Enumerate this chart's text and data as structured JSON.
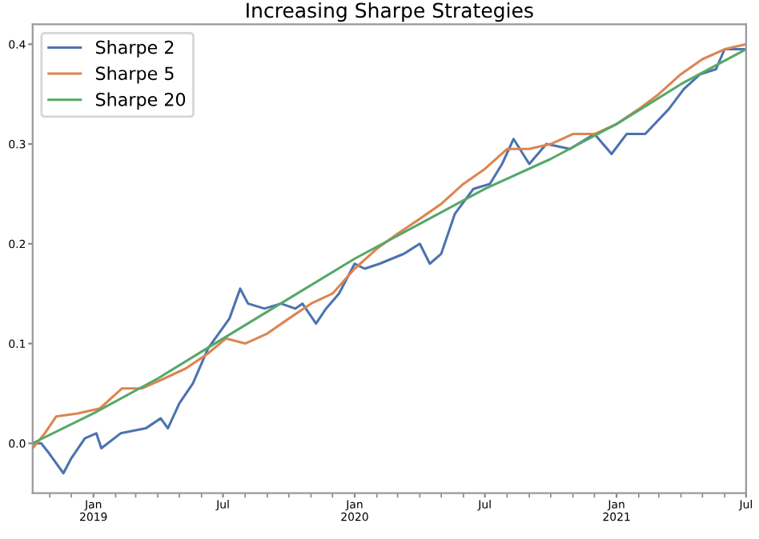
{
  "chart_data": {
    "type": "line",
    "title": "Increasing Sharpe Strategies",
    "xlim": [
      "2018-10-08",
      "2021-07-01"
    ],
    "ylim": [
      -0.05,
      0.42
    ],
    "xticks": [
      {
        "value": "2019-01-01",
        "label": "Jan\n2019"
      },
      {
        "value": "2019-07-01",
        "label": "Jul"
      },
      {
        "value": "2020-01-01",
        "label": "Jan\n2020"
      },
      {
        "value": "2020-07-01",
        "label": "Jul"
      },
      {
        "value": "2021-01-01",
        "label": "Jan\n2021"
      },
      {
        "value": "2021-07-01",
        "label": "Jul"
      }
    ],
    "yticks": [
      {
        "value": 0,
        "label": "0.0"
      },
      0.1,
      0.2,
      0.3,
      0.4
    ],
    "grid": false,
    "legend": "top left",
    "series": [
      {
        "name": "Sharpe 2",
        "color": "#4c72b0",
        "x": [
          "2018-10-08",
          "2018-10-20",
          "2018-10-31",
          "2018-11-20",
          "2018-12-01",
          "2018-12-20",
          "2019-01-05",
          "2019-01-12",
          "2019-02-08",
          "2019-03-15",
          "2019-04-05",
          "2019-04-15",
          "2019-05-01",
          "2019-05-20",
          "2019-06-10",
          "2019-06-25",
          "2019-07-10",
          "2019-07-25",
          "2019-08-05",
          "2019-08-28",
          "2019-09-20",
          "2019-10-10",
          "2019-10-20",
          "2019-11-08",
          "2019-11-22",
          "2019-12-10",
          "2020-01-01",
          "2020-01-15",
          "2020-02-05",
          "2020-03-10",
          "2020-04-01",
          "2020-04-15",
          "2020-05-01",
          "2020-05-20",
          "2020-06-15",
          "2020-07-08",
          "2020-07-25",
          "2020-08-10",
          "2020-09-01",
          "2020-09-25",
          "2020-10-28",
          "2020-12-01",
          "2020-12-25",
          "2021-01-15",
          "2021-02-10",
          "2021-03-15",
          "2021-04-05",
          "2021-04-28",
          "2021-05-20",
          "2021-06-01",
          "2021-06-20",
          "2021-07-01"
        ],
        "values": [
          0.0,
          0.0,
          -0.01,
          -0.03,
          -0.015,
          0.005,
          0.01,
          -0.005,
          0.01,
          0.015,
          0.025,
          0.015,
          0.04,
          0.06,
          0.095,
          0.11,
          0.125,
          0.155,
          0.14,
          0.135,
          0.14,
          0.135,
          0.14,
          0.12,
          0.135,
          0.15,
          0.18,
          0.175,
          0.18,
          0.19,
          0.2,
          0.18,
          0.19,
          0.23,
          0.255,
          0.26,
          0.28,
          0.305,
          0.28,
          0.3,
          0.295,
          0.31,
          0.29,
          0.31,
          0.31,
          0.335,
          0.355,
          0.37,
          0.375,
          0.395,
          0.395,
          0.395
        ]
      },
      {
        "name": "Sharpe 5",
        "color": "#dd8452",
        "x": [
          "2018-10-08",
          "2018-10-25",
          "2018-11-10",
          "2018-12-10",
          "2019-01-10",
          "2019-02-10",
          "2019-03-10",
          "2019-04-10",
          "2019-05-10",
          "2019-06-10",
          "2019-07-05",
          "2019-08-01",
          "2019-09-01",
          "2019-10-01",
          "2019-11-01",
          "2019-12-01",
          "2020-01-01",
          "2020-02-01",
          "2020-03-01",
          "2020-04-01",
          "2020-05-01",
          "2020-06-01",
          "2020-07-01",
          "2020-08-01",
          "2020-09-01",
          "2020-10-01",
          "2020-11-01",
          "2020-12-01",
          "2021-01-01",
          "2021-02-01",
          "2021-03-01",
          "2021-04-01",
          "2021-05-01",
          "2021-06-01",
          "2021-07-01"
        ],
        "values": [
          -0.005,
          0.01,
          0.027,
          0.03,
          0.035,
          0.055,
          0.055,
          0.065,
          0.075,
          0.09,
          0.105,
          0.1,
          0.11,
          0.125,
          0.14,
          0.15,
          0.175,
          0.195,
          0.21,
          0.225,
          0.24,
          0.26,
          0.275,
          0.295,
          0.295,
          0.3,
          0.31,
          0.31,
          0.32,
          0.335,
          0.35,
          0.37,
          0.385,
          0.395,
          0.4
        ]
      },
      {
        "name": "Sharpe 20",
        "color": "#55a868",
        "x": [
          "2018-10-08",
          "2019-01-01",
          "2019-04-01",
          "2019-07-01",
          "2019-10-01",
          "2020-01-01",
          "2020-04-01",
          "2020-07-01",
          "2020-10-01",
          "2021-01-01",
          "2021-04-01",
          "2021-07-01"
        ],
        "values": [
          0.0,
          0.03,
          0.065,
          0.105,
          0.145,
          0.185,
          0.22,
          0.255,
          0.285,
          0.32,
          0.36,
          0.395
        ]
      }
    ]
  }
}
